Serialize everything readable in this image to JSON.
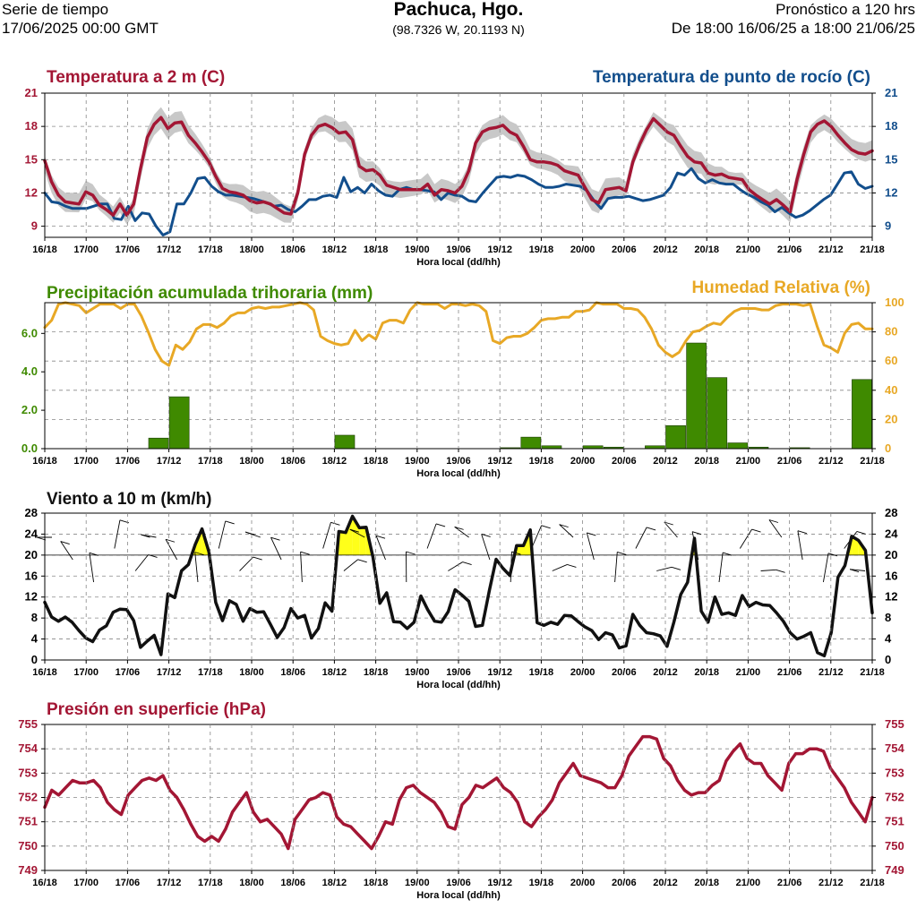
{
  "header": {
    "left_line1": "Serie de tiempo",
    "left_line2": "17/06/2025 00:00 GMT",
    "title": "Pachuca, Hgo.",
    "coords": "(98.7326 W, 20.1193 N)",
    "right_line1": "Pronóstico a 120 hrs",
    "right_line2": "De 18:00 16/06/25 a 18:00 21/06/25"
  },
  "colors": {
    "temperature": "#a31634",
    "dewpoint": "#124e8c",
    "precip": "#3f8a00",
    "humidity": "#e8a825",
    "wind": "#111111",
    "wind_highlight": "#ffff1a",
    "pressure": "#a31634",
    "spread": "#c8c8c8"
  },
  "x_tick_labels": [
    "16/18",
    "17/00",
    "17/06",
    "17/12",
    "17/18",
    "18/00",
    "18/06",
    "18/12",
    "18/18",
    "19/00",
    "19/06",
    "19/12",
    "19/18",
    "20/00",
    "20/06",
    "20/12",
    "20/18",
    "21/00",
    "21/06",
    "21/12",
    "21/18"
  ],
  "xlabel": "Hora local (dd/hh)",
  "chart_data": [
    {
      "type": "line",
      "title_left": "Temperatura a 2 m (C)",
      "title_right": "Temperatura de punto de rocío (C)",
      "xlabel": "Hora local (dd/hh)",
      "ylim": [
        8,
        21
      ],
      "yticks": [
        9,
        12,
        15,
        18,
        21
      ],
      "grid": true,
      "series": [
        {
          "name": "Temperatura a 2 m (C)",
          "values": [
            14.9,
            13.0,
            11.8,
            11.2,
            11.1,
            11.0,
            12.1,
            11.8,
            10.9,
            10.5,
            10.0,
            11.0,
            10.0,
            11.0,
            14.2,
            17.0,
            18.2,
            18.8,
            17.8,
            18.3,
            18.4,
            17.2,
            16.5,
            15.7,
            14.8,
            13.5,
            12.4,
            12.1,
            12.0,
            11.8,
            11.3,
            11.1,
            11.2,
            11.0,
            10.6,
            10.2,
            10.1,
            12.0,
            15.5,
            17.2,
            18.0,
            18.2,
            17.9,
            17.4,
            17.5,
            16.8,
            14.4,
            14.0,
            14.1,
            13.6,
            12.7,
            12.5,
            12.3,
            12.3,
            12.3,
            12.3,
            12.8,
            11.8,
            12.3,
            12.2,
            12.0,
            12.6,
            14.0,
            16.5,
            17.5,
            17.8,
            17.9,
            18.1,
            17.5,
            17.2,
            16.2,
            15.0,
            14.8,
            14.8,
            14.7,
            14.5,
            14.0,
            13.8,
            13.6,
            12.5,
            11.4,
            11.1,
            12.3,
            12.4,
            12.5,
            12.2,
            14.8,
            16.4,
            17.7,
            18.7,
            18.1,
            17.5,
            17.2,
            16.2,
            15.3,
            14.8,
            14.7,
            13.8,
            13.6,
            13.7,
            13.4,
            13.3,
            13.2,
            12.3,
            11.8,
            11.4,
            11.0,
            11.4,
            10.9,
            10.3,
            13.2,
            15.5,
            17.5,
            18.2,
            18.5,
            18.0,
            17.2,
            16.5,
            15.9,
            15.6,
            15.5,
            15.8
          ]
        },
        {
          "name": "Temperatura de punto de rocío (C)",
          "values": [
            12.0,
            11.2,
            11.1,
            10.8,
            10.6,
            10.6,
            10.6,
            10.8,
            11.0,
            11.0,
            9.7,
            9.6,
            10.8,
            9.5,
            10.2,
            10.1,
            9.0,
            8.2,
            8.5,
            11.0,
            11.0,
            12.0,
            13.3,
            13.4,
            12.6,
            12.1,
            11.8,
            11.8,
            11.7,
            11.6,
            11.5,
            11.3,
            11.1,
            10.8,
            10.9,
            10.5,
            10.3,
            10.8,
            11.4,
            11.4,
            11.7,
            11.8,
            11.6,
            13.4,
            12.1,
            12.5,
            12.0,
            12.8,
            12.2,
            11.8,
            11.7,
            12.3,
            12.5,
            12.3,
            12.3,
            12.2,
            12.1,
            11.4,
            12.0,
            11.8,
            11.7,
            11.3,
            11.2,
            12.0,
            12.7,
            13.4,
            13.5,
            13.4,
            13.6,
            13.5,
            13.2,
            12.8,
            12.5,
            12.5,
            12.6,
            12.8,
            12.7,
            12.6,
            12.2,
            11.3,
            10.6,
            11.5,
            11.6,
            11.6,
            11.7,
            11.5,
            11.3,
            11.4,
            11.6,
            11.8,
            12.5,
            13.8,
            13.6,
            14.2,
            13.3,
            12.9,
            13.2,
            12.9,
            12.8,
            12.8,
            12.3,
            11.9,
            11.6,
            11.2,
            10.9,
            10.3,
            10.7,
            10.2,
            9.8,
            10.0,
            10.4,
            10.9,
            11.4,
            11.8,
            12.8,
            13.8,
            13.9,
            12.8,
            12.4,
            12.6
          ]
        }
      ],
      "spread_note": "gray band around temperature"
    },
    {
      "type": "bar",
      "title_left": "Precipitación acumulada trihoraria (mm)",
      "title_right": "Humedad Relativa (%)",
      "xlabel": "Hora local (dd/hh)",
      "ylim_left": [
        0,
        7.6
      ],
      "yticks_left": [
        "0.0",
        "2.0",
        "4.0",
        "6.0"
      ],
      "ylim_right": [
        0,
        100
      ],
      "yticks_right": [
        0,
        20,
        40,
        60,
        80,
        100
      ],
      "precip_3h_mm": [
        0,
        0,
        0,
        0,
        0,
        0.55,
        2.7,
        0,
        0,
        0,
        0,
        0,
        0,
        0,
        0.7,
        0,
        0,
        0,
        0,
        0,
        0,
        0,
        0.05,
        0.6,
        0.15,
        0,
        0.15,
        0.08,
        0,
        0.15,
        1.2,
        5.5,
        3.7,
        0.3,
        0.08,
        0,
        0.05,
        0,
        0,
        3.6
      ],
      "humidity_series": {
        "name": "Humedad Relativa (%)",
        "values": [
          83,
          88,
          99,
          100,
          99,
          98,
          93,
          96,
          99,
          99,
          99,
          96,
          99,
          99,
          91,
          80,
          68,
          60,
          57,
          71,
          68,
          73,
          82,
          85,
          85,
          83,
          86,
          91,
          93,
          93,
          96,
          97,
          96,
          97,
          97,
          98,
          99,
          100,
          99,
          95,
          77,
          74,
          72,
          71,
          72,
          81,
          74,
          78,
          75,
          86,
          88,
          88,
          86,
          95,
          100,
          99,
          99,
          99,
          96,
          99,
          99,
          98,
          99,
          98,
          94,
          74,
          72,
          76,
          77,
          77,
          79,
          83,
          88,
          89,
          89,
          90,
          90,
          94,
          94,
          95,
          100,
          99,
          99,
          99,
          96,
          96,
          95,
          90,
          82,
          71,
          66,
          63,
          66,
          74,
          80,
          81,
          84,
          86,
          85,
          90,
          94,
          96,
          96,
          96,
          95,
          95,
          98,
          99,
          99,
          99,
          98,
          99,
          84,
          71,
          69,
          66,
          79,
          85,
          86,
          82,
          82
        ]
      }
    },
    {
      "type": "line",
      "title_left": "Viento a 10 m (km/h)",
      "xlabel": "Hora local (dd/hh)",
      "ylim": [
        0,
        28
      ],
      "yticks": [
        0,
        4,
        8,
        12,
        16,
        20,
        24,
        28
      ],
      "threshold": 20,
      "series": [
        {
          "name": "Viento a 10 m (km/h)",
          "values": [
            11.0,
            8.2,
            7.4,
            8.2,
            7.2,
            5.6,
            4.2,
            3.5,
            5.7,
            6.5,
            9.1,
            9.7,
            9.6,
            7.5,
            2.4,
            3.6,
            4.7,
            1.0,
            12.6,
            11.9,
            17.0,
            18.2,
            22.0,
            25.0,
            20.6,
            11.0,
            7.5,
            11.3,
            10.6,
            7.4,
            9.8,
            9.1,
            9.2,
            6.8,
            4.3,
            6.2,
            9.8,
            8.0,
            8.5,
            4.2,
            6.0,
            10.9,
            9.3,
            24.5,
            24.3,
            27.4,
            25.2,
            25.3,
            19.6,
            10.8,
            12.8,
            7.3,
            7.2,
            6.0,
            7.2,
            12.2,
            9.6,
            7.4,
            7.2,
            9.2,
            13.4,
            12.4,
            11.2,
            6.4,
            6.6,
            13.2,
            19.2,
            17.5,
            16.1,
            21.8,
            21.8,
            24.8,
            7.1,
            6.6,
            7.2,
            6.8,
            8.5,
            8.4,
            7.3,
            6.3,
            5.6,
            3.9,
            5.2,
            4.8,
            2.3,
            2.7,
            8.7,
            6.6,
            5.2,
            5.0,
            4.6,
            2.6,
            7.2,
            12.5,
            14.8,
            23.2,
            9.3,
            7.2,
            12.0,
            8.7,
            9.0,
            8.5,
            12.3,
            10.2,
            11.0,
            10.5,
            10.4,
            9.0,
            7.4,
            5.2,
            4.0,
            4.5,
            5.2,
            1.4,
            0.8,
            5.2,
            15.8,
            18.0,
            23.6,
            22.8,
            20.9,
            9.0
          ]
        }
      ],
      "barbs_note": "wind barbs drawn along the panel"
    },
    {
      "type": "line",
      "title_left": "Presión en superficie (hPa)",
      "xlabel": "Hora local (dd/hh)",
      "ylim": [
        749,
        755
      ],
      "yticks": [
        749,
        750,
        751,
        752,
        753,
        754,
        755
      ],
      "series": [
        {
          "name": "Presión en superficie (hPa)",
          "values": [
            751.6,
            752.3,
            752.1,
            752.4,
            752.7,
            752.6,
            752.6,
            752.7,
            752.4,
            751.8,
            751.5,
            751.3,
            752.1,
            752.4,
            752.7,
            752.8,
            752.7,
            752.9,
            752.3,
            752.0,
            751.5,
            750.9,
            750.4,
            750.2,
            750.4,
            750.2,
            750.7,
            751.4,
            751.8,
            752.2,
            751.4,
            751.0,
            751.1,
            750.8,
            750.5,
            749.9,
            751.1,
            751.5,
            751.9,
            752.0,
            752.2,
            752.1,
            751.2,
            750.9,
            750.8,
            750.5,
            750.2,
            749.9,
            750.4,
            751.0,
            750.9,
            751.9,
            752.4,
            752.5,
            752.2,
            752.0,
            751.8,
            751.4,
            750.8,
            750.7,
            751.7,
            752.0,
            752.5,
            752.4,
            752.6,
            752.8,
            752.4,
            752.2,
            751.8,
            751.0,
            750.8,
            751.2,
            751.5,
            751.9,
            752.6,
            753.0,
            753.4,
            752.9,
            752.8,
            752.7,
            752.6,
            752.4,
            752.4,
            752.9,
            753.7,
            754.1,
            754.5,
            754.5,
            754.4,
            753.6,
            753.3,
            752.7,
            752.3,
            752.1,
            752.2,
            752.2,
            752.5,
            752.7,
            753.5,
            753.9,
            754.2,
            753.6,
            753.4,
            753.4,
            752.9,
            752.6,
            752.3,
            753.4,
            753.8,
            753.8,
            754.0,
            754.0,
            753.9,
            753.2,
            752.8,
            752.4,
            751.8,
            751.4,
            751.0,
            752.0
          ]
        }
      ]
    }
  ]
}
